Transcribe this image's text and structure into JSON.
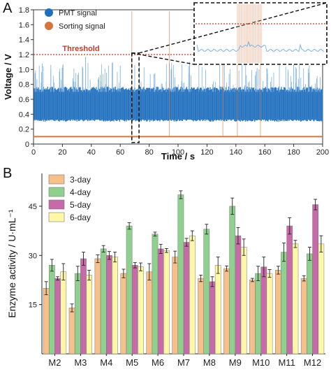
{
  "panel_a": {
    "letter": "A",
    "threshold_label": "Threshold",
    "legend": [
      {
        "label": "PMT signal",
        "color": "#1f6fbf"
      },
      {
        "label": "Sorting signal",
        "color": "#d2773e"
      }
    ]
  },
  "panel_b": {
    "letter": "B"
  },
  "chart_data": [
    {
      "type": "line",
      "xlabel": "Time / s",
      "ylabel": "Voltage / V",
      "xlim": [
        0,
        200
      ],
      "ylim": [
        0,
        1.8
      ],
      "xticks": [
        "0",
        "20",
        "40",
        "60",
        "80",
        "100",
        "120",
        "140",
        "160",
        "180",
        "200"
      ],
      "yticks": [
        "0",
        "0.2",
        "0.4",
        "0.6",
        "0.8",
        "1.0",
        "1.2",
        "1.4",
        "1.6",
        "1.8"
      ],
      "threshold": 1.2,
      "series": [
        {
          "name": "PMT signal",
          "color": "#1f6fbf",
          "baseline_band": [
            0.33,
            0.72
          ],
          "spike_peaks": [
            1.0,
            1.17,
            1.05,
            0.95,
            1.1,
            1.08,
            1.0,
            1.15
          ]
        },
        {
          "name": "Sorting signal",
          "color": "#d2773e",
          "baseline": 0.1,
          "pulse_times": [
            68,
            94,
            131,
            141,
            157
          ],
          "pulse_height": 1.8
        }
      ],
      "zoom_inset": {
        "x_range": [
          68,
          73
        ],
        "y_range": [
          0,
          1.22
        ]
      }
    },
    {
      "type": "bar",
      "xlabel": "",
      "ylabel": "Enzyme activity / U·mL⁻¹",
      "ylim": [
        0,
        55
      ],
      "yticks": [
        "15",
        "30",
        "45"
      ],
      "categories": [
        "M2",
        "M3",
        "M4",
        "M5",
        "M6",
        "M7",
        "M8",
        "M9",
        "M10",
        "M11",
        "M12"
      ],
      "series": [
        {
          "name": "3-day",
          "color": "#f6c08a",
          "values": [
            20,
            14,
            29,
            24.5,
            25,
            29.5,
            23,
            26,
            22.5,
            25.5,
            23
          ],
          "errors": [
            2,
            1.2,
            1.2,
            1.3,
            2.5,
            1.8,
            1,
            0.8,
            0.5,
            1.2,
            0.8
          ]
        },
        {
          "name": "4-day",
          "color": "#8fd08f",
          "values": [
            27,
            24.5,
            32,
            39,
            36.5,
            48.5,
            38,
            45,
            24.5,
            31,
            30.5
          ],
          "errors": [
            1.8,
            2.2,
            1,
            1,
            0.6,
            1.2,
            1.5,
            2.5,
            2.2,
            2.8,
            2
          ]
        },
        {
          "name": "5-day",
          "color": "#c76aa8",
          "values": [
            23,
            29,
            30,
            27,
            32,
            34,
            22,
            36,
            26.5,
            39,
            45.5
          ],
          "errors": [
            0.5,
            2,
            1.2,
            0.8,
            1.4,
            1.2,
            1.5,
            2.5,
            3,
            2.5,
            1.6
          ]
        },
        {
          "name": "6-day",
          "color": "#fff7a8",
          "values": [
            25,
            24,
            29.5,
            26.5,
            31.5,
            36,
            27,
            32.5,
            24.5,
            33.5,
            33.5
          ],
          "errors": [
            2.5,
            1.5,
            1.5,
            1.2,
            0.6,
            1.5,
            2.5,
            2.5,
            1.2,
            1.1,
            2.5
          ]
        }
      ]
    }
  ]
}
